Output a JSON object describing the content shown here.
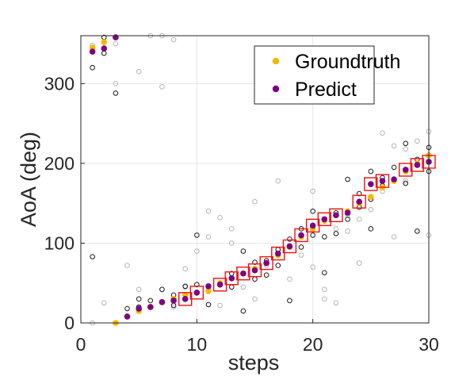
{
  "chart_data": {
    "type": "scatter",
    "xlabel": "steps",
    "ylabel": "AoA (deg)",
    "xlim": [
      0,
      30
    ],
    "ylim": [
      0,
      360
    ],
    "xticks": [
      0,
      10,
      20,
      30
    ],
    "yticks": [
      0,
      100,
      200,
      300
    ],
    "grid": true,
    "legend_placement": "top-right",
    "legend": [
      {
        "name": "Groundtruth",
        "color": "#f5b800",
        "marker": "filled-circle"
      },
      {
        "name": "Predict",
        "color": "#7e0080",
        "marker": "filled-circle"
      }
    ],
    "series": [
      {
        "name": "Groundtruth",
        "color": "#f5b800",
        "points": [
          [
            1,
            345
          ],
          [
            2,
            352
          ],
          [
            3,
            0
          ],
          [
            4,
            8
          ],
          [
            5,
            15
          ],
          [
            6,
            20
          ],
          [
            7,
            26
          ],
          [
            8,
            30
          ],
          [
            9,
            35
          ],
          [
            10,
            38
          ],
          [
            11,
            40
          ],
          [
            12,
            50
          ],
          [
            13,
            56
          ],
          [
            14,
            62
          ],
          [
            15,
            68
          ],
          [
            16,
            75
          ],
          [
            17,
            85
          ],
          [
            18,
            95
          ],
          [
            19,
            108
          ],
          [
            20,
            118
          ],
          [
            21,
            128
          ],
          [
            22,
            135
          ],
          [
            23,
            140
          ],
          [
            24,
            150
          ],
          [
            25,
            158
          ],
          [
            26,
            170
          ],
          [
            27,
            178
          ],
          [
            28,
            190
          ],
          [
            29,
            200
          ],
          [
            30,
            210
          ]
        ]
      },
      {
        "name": "Predict",
        "color": "#7e0080",
        "points": [
          [
            1,
            340
          ],
          [
            2,
            344
          ],
          [
            3,
            358
          ],
          [
            4,
            8
          ],
          [
            5,
            18
          ],
          [
            6,
            20
          ],
          [
            7,
            26
          ],
          [
            8,
            28
          ],
          [
            9,
            30
          ],
          [
            10,
            38
          ],
          [
            11,
            46
          ],
          [
            12,
            48
          ],
          [
            13,
            56
          ],
          [
            14,
            62
          ],
          [
            15,
            66
          ],
          [
            16,
            75
          ],
          [
            17,
            87
          ],
          [
            18,
            96
          ],
          [
            19,
            110
          ],
          [
            20,
            122
          ],
          [
            21,
            130
          ],
          [
            22,
            135
          ],
          [
            23,
            138
          ],
          [
            24,
            152
          ],
          [
            25,
            174
          ],
          [
            26,
            178
          ],
          [
            27,
            180
          ],
          [
            28,
            192
          ],
          [
            29,
            198
          ],
          [
            30,
            202
          ]
        ]
      }
    ],
    "candidates_dark": [
      [
        1,
        320
      ],
      [
        1,
        83
      ],
      [
        2,
        358
      ],
      [
        2,
        338
      ],
      [
        3,
        288
      ],
      [
        3,
        358
      ],
      [
        4,
        8
      ],
      [
        4,
        18
      ],
      [
        5,
        20
      ],
      [
        5,
        30
      ],
      [
        6,
        28
      ],
      [
        7,
        42
      ],
      [
        7,
        26
      ],
      [
        8,
        35
      ],
      [
        8,
        22
      ],
      [
        9,
        46
      ],
      [
        10,
        110
      ],
      [
        10,
        48
      ],
      [
        11,
        23
      ],
      [
        11,
        45
      ],
      [
        12,
        48
      ],
      [
        13,
        62
      ],
      [
        13,
        45
      ],
      [
        14,
        90
      ],
      [
        14,
        15
      ],
      [
        15,
        76
      ],
      [
        15,
        55
      ],
      [
        16,
        78
      ],
      [
        16,
        60
      ],
      [
        17,
        92
      ],
      [
        17,
        72
      ],
      [
        18,
        28
      ],
      [
        18,
        105
      ],
      [
        19,
        118
      ],
      [
        19,
        95
      ],
      [
        20,
        140
      ],
      [
        20,
        110
      ],
      [
        21,
        63
      ],
      [
        21,
        108
      ],
      [
        22,
        138
      ],
      [
        22,
        112
      ],
      [
        23,
        180
      ],
      [
        23,
        130
      ],
      [
        24,
        145
      ],
      [
        24,
        162
      ],
      [
        25,
        190
      ],
      [
        25,
        118
      ],
      [
        25,
        155
      ],
      [
        26,
        182
      ],
      [
        26,
        172
      ],
      [
        27,
        195
      ],
      [
        28,
        175
      ],
      [
        28,
        225
      ],
      [
        29,
        115
      ],
      [
        29,
        205
      ],
      [
        30,
        220
      ],
      [
        30,
        190
      ]
    ],
    "candidates_light": [
      [
        1,
        0
      ],
      [
        1,
        348
      ],
      [
        2,
        25
      ],
      [
        3,
        300
      ],
      [
        3,
        350
      ],
      [
        4,
        72
      ],
      [
        5,
        315
      ],
      [
        5,
        42
      ],
      [
        6,
        360
      ],
      [
        7,
        360
      ],
      [
        7,
        296
      ],
      [
        8,
        355
      ],
      [
        8,
        20
      ],
      [
        9,
        68
      ],
      [
        9,
        45
      ],
      [
        10,
        90
      ],
      [
        11,
        108
      ],
      [
        11,
        140
      ],
      [
        12,
        132
      ],
      [
        12,
        22
      ],
      [
        13,
        100
      ],
      [
        13,
        118
      ],
      [
        14,
        45
      ],
      [
        15,
        30
      ],
      [
        15,
        152
      ],
      [
        16,
        72
      ],
      [
        17,
        178
      ],
      [
        18,
        95
      ],
      [
        18,
        55
      ],
      [
        19,
        85
      ],
      [
        20,
        165
      ],
      [
        20,
        70
      ],
      [
        21,
        42
      ],
      [
        21,
        30
      ],
      [
        22,
        118
      ],
      [
        22,
        25
      ],
      [
        23,
        115
      ],
      [
        23,
        135
      ],
      [
        24,
        75
      ],
      [
        24,
        130
      ],
      [
        25,
        142
      ],
      [
        26,
        238
      ],
      [
        26,
        165
      ],
      [
        27,
        222
      ],
      [
        27,
        108
      ],
      [
        28,
        178
      ],
      [
        28,
        218
      ],
      [
        29,
        228
      ],
      [
        30,
        240
      ],
      [
        30,
        110
      ]
    ],
    "highlight_box_steps": [
      9,
      10,
      12,
      13,
      14,
      15,
      16,
      17,
      18,
      19,
      20,
      21,
      22,
      24,
      25,
      26,
      28,
      29,
      30
    ]
  }
}
